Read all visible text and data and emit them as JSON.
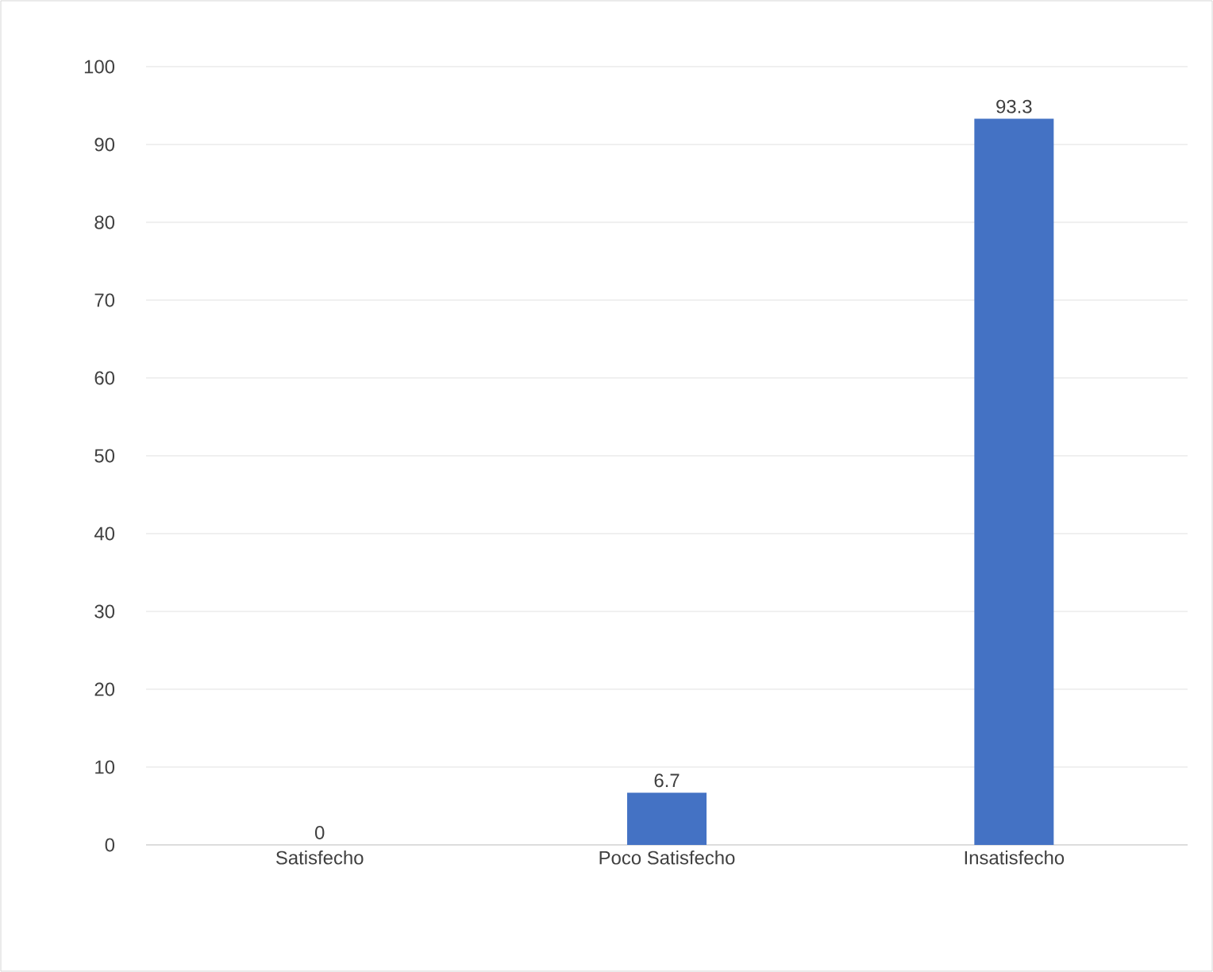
{
  "chart_data": {
    "type": "bar",
    "categories": [
      "Satisfecho",
      "Poco Satisfecho",
      "Insatisfecho"
    ],
    "values": [
      0,
      6.7,
      93.3
    ],
    "color": "#4472c4",
    "ylim": [
      0,
      100
    ],
    "yticks": [
      0,
      10,
      20,
      30,
      40,
      50,
      60,
      70,
      80,
      90,
      100
    ],
    "grid": "y",
    "data_labels": true
  }
}
